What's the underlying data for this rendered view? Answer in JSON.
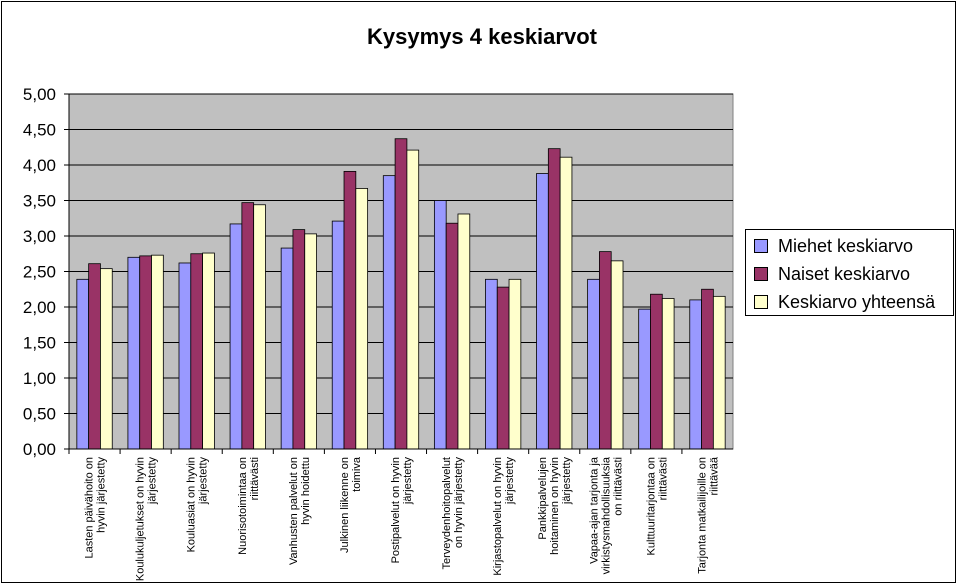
{
  "chart_data": {
    "type": "bar",
    "title": "Kysymys 4 keskiarvot",
    "xlabel": "",
    "ylabel": "",
    "ylim": [
      0,
      5
    ],
    "yticks": [
      "0,00",
      "0,50",
      "1,00",
      "1,50",
      "2,00",
      "2,50",
      "3,00",
      "3,50",
      "4,00",
      "4,50",
      "5,00"
    ],
    "grid": true,
    "legend_position": "right",
    "categories": [
      [
        "Lasten päivähoito on",
        "hyvin järjestetty"
      ],
      [
        "Koulukuljetukset on hyvin",
        "järjestetty"
      ],
      [
        "Kouluasiat on hyvin",
        "järjestetty"
      ],
      [
        "Nuorisotoimintaa on",
        "riittävästi"
      ],
      [
        "Vanhusten palvelut on",
        "hyvin hoidettu"
      ],
      [
        "Julkinen liikenne on",
        "toimiva"
      ],
      [
        "Postipalvelut on hyvin",
        "järjestetty"
      ],
      [
        "Terveydenhoitopalvelut",
        "on hyvin järjestetty"
      ],
      [
        "Kirjastopalvelut on hyvin",
        "järjestetty"
      ],
      [
        "Pankkipalvelujen",
        "hoitaminen on hyvin",
        "järjestetty"
      ],
      [
        "Vapaa-ajan tarjonta ja",
        "virkistysmahdollisuuksia",
        "on riittävästi"
      ],
      [
        "Kulttuuritarjontaa on",
        "riittävästi"
      ],
      [
        "Tarjonta matkailijoille on",
        "riittävää"
      ]
    ],
    "series": [
      {
        "name": "Miehet keskiarvo",
        "color": "#9999ff",
        "values": [
          2.39,
          2.7,
          2.62,
          3.17,
          2.83,
          3.21,
          3.85,
          3.5,
          2.39,
          3.88,
          2.39,
          1.97,
          2.1
        ]
      },
      {
        "name": "Naiset keskiarvo",
        "color": "#993366",
        "values": [
          2.61,
          2.72,
          2.75,
          3.47,
          3.09,
          3.91,
          4.37,
          3.18,
          2.28,
          4.23,
          2.78,
          2.18,
          2.25
        ]
      },
      {
        "name": "Keskiarvo yhteensä",
        "color": "#ffffcc",
        "values": [
          2.54,
          2.73,
          2.76,
          3.44,
          3.03,
          3.67,
          4.21,
          3.31,
          2.39,
          4.11,
          2.65,
          2.12,
          2.15
        ]
      }
    ],
    "colors": {
      "plot_background": "#c0c0c0",
      "gridline": "#000000"
    }
  }
}
